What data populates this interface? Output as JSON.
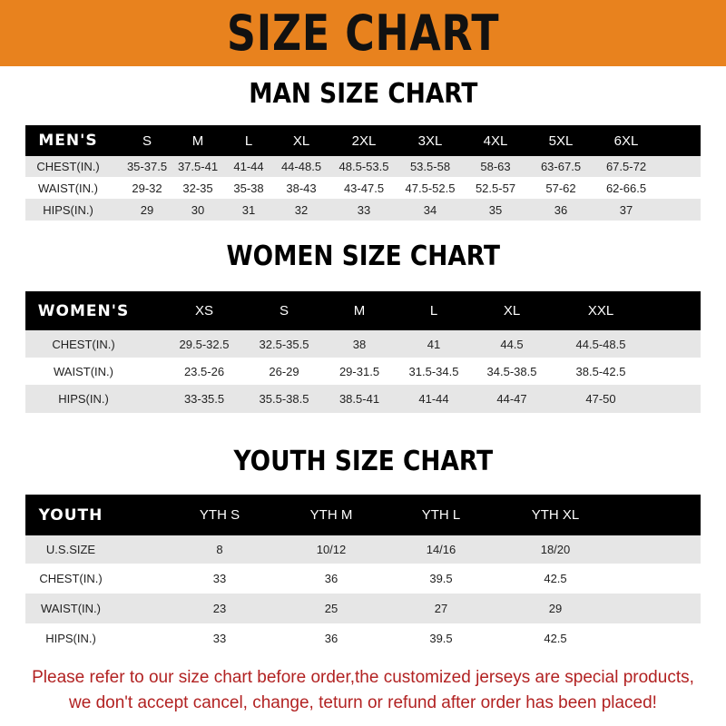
{
  "banner_title": "SIZE CHART",
  "colors": {
    "banner": "#e8821e",
    "header_row": "#000000",
    "stripe": "#e6e6e6",
    "note": "#b22222"
  },
  "men": {
    "title": "MAN SIZE CHART",
    "header": [
      "MEN'S",
      "S",
      "M",
      "L",
      "XL",
      "2XL",
      "3XL",
      "4XL",
      "5XL",
      "6XL"
    ],
    "rows": [
      [
        "CHEST(IN.)",
        "35-37.5",
        "37.5-41",
        "41-44",
        "44-48.5",
        "48.5-53.5",
        "53.5-58",
        "58-63",
        "63-67.5",
        "67.5-72"
      ],
      [
        "WAIST(IN.)",
        "29-32",
        "32-35",
        "35-38",
        "38-43",
        "43-47.5",
        "47.5-52.5",
        "52.5-57",
        "57-62",
        "62-66.5"
      ],
      [
        "HIPS(IN.)",
        "29",
        "30",
        "31",
        "32",
        "33",
        "34",
        "35",
        "36",
        "37"
      ]
    ]
  },
  "women": {
    "title": "WOMEN SIZE CHART",
    "header": [
      "WOMEN'S",
      "XS",
      "S",
      "M",
      "L",
      "XL",
      "XXL"
    ],
    "rows": [
      [
        "CHEST(IN.)",
        "29.5-32.5",
        "32.5-35.5",
        "38",
        "41",
        "44.5",
        "44.5-48.5"
      ],
      [
        "WAIST(IN.)",
        "23.5-26",
        "26-29",
        "29-31.5",
        "31.5-34.5",
        "34.5-38.5",
        "38.5-42.5"
      ],
      [
        "HIPS(IN.)",
        "33-35.5",
        "35.5-38.5",
        "38.5-41",
        "41-44",
        "44-47",
        "47-50"
      ]
    ]
  },
  "youth": {
    "title": "YOUTH SIZE CHART",
    "header": [
      "YOUTH",
      "YTH S",
      "YTH M",
      "YTH L",
      "YTH XL"
    ],
    "rows": [
      [
        "U.S.SIZE",
        "8",
        "10/12",
        "14/16",
        "18/20"
      ],
      [
        "CHEST(IN.)",
        "33",
        "36",
        "39.5",
        "42.5"
      ],
      [
        "WAIST(IN.)",
        "23",
        "25",
        "27",
        "29"
      ],
      [
        "HIPS(IN.)",
        "33",
        "36",
        "39.5",
        "42.5"
      ]
    ]
  },
  "note": {
    "line1": "Please refer to our size chart before order,the customized jerseys are special products,",
    "line2": "we don't accept cancel, change, teturn or refund after order has been placed!"
  }
}
